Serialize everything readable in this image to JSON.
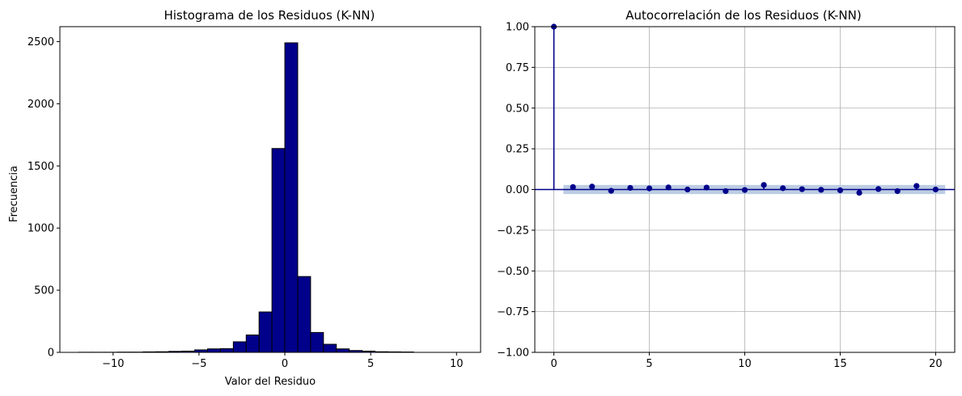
{
  "colors": {
    "bar_fill": "#00008B",
    "bar_edge": "#000000",
    "stem": "#00008B",
    "marker": "#00008B",
    "confidence_band": "#B0C4DE",
    "grid": "#b0b0b0"
  },
  "chart_data": [
    {
      "type": "bar",
      "title": "Histograma de los Residuos (K-NN)",
      "xlabel": "Valor del Residuo",
      "ylabel": "Frecuencia",
      "xlim": [
        -13.1,
        11.4
      ],
      "ylim": [
        0,
        2620
      ],
      "xticks": [
        -10,
        -5,
        0,
        5,
        10
      ],
      "xtick_labels": [
        "−10",
        "−5",
        "0",
        "5",
        "10"
      ],
      "yticks": [
        0,
        500,
        1000,
        1500,
        2000,
        2500
      ],
      "ytick_labels": [
        "0",
        "500",
        "1000",
        "1500",
        "2000",
        "2500"
      ],
      "grid": false,
      "bins": [
        {
          "x0": -12.0,
          "x1": -11.25,
          "value": 1
        },
        {
          "x0": -11.25,
          "x1": -10.5,
          "value": 1
        },
        {
          "x0": -10.5,
          "x1": -9.75,
          "value": 1
        },
        {
          "x0": -9.75,
          "x1": -9.0,
          "value": 2
        },
        {
          "x0": -9.0,
          "x1": -8.25,
          "value": 2
        },
        {
          "x0": -8.25,
          "x1": -7.5,
          "value": 4
        },
        {
          "x0": -7.5,
          "x1": -6.75,
          "value": 5
        },
        {
          "x0": -6.75,
          "x1": -6.0,
          "value": 8
        },
        {
          "x0": -6.0,
          "x1": -5.25,
          "value": 10
        },
        {
          "x0": -5.25,
          "x1": -4.5,
          "value": 20
        },
        {
          "x0": -4.5,
          "x1": -3.75,
          "value": 28
        },
        {
          "x0": -3.75,
          "x1": -3.0,
          "value": 30
        },
        {
          "x0": -3.0,
          "x1": -2.25,
          "value": 85
        },
        {
          "x0": -2.25,
          "x1": -1.5,
          "value": 140
        },
        {
          "x0": -1.5,
          "x1": -0.75,
          "value": 325
        },
        {
          "x0": -0.75,
          "x1": 0.0,
          "value": 1640
        },
        {
          "x0": 0.0,
          "x1": 0.75,
          "value": 2490
        },
        {
          "x0": 0.75,
          "x1": 1.5,
          "value": 610
        },
        {
          "x0": 1.5,
          "x1": 2.25,
          "value": 160
        },
        {
          "x0": 2.25,
          "x1": 3.0,
          "value": 65
        },
        {
          "x0": 3.0,
          "x1": 3.75,
          "value": 28
        },
        {
          "x0": 3.75,
          "x1": 4.5,
          "value": 15
        },
        {
          "x0": 4.5,
          "x1": 5.25,
          "value": 10
        },
        {
          "x0": 5.25,
          "x1": 6.0,
          "value": 5
        },
        {
          "x0": 6.0,
          "x1": 6.75,
          "value": 4
        },
        {
          "x0": 6.75,
          "x1": 7.5,
          "value": 3
        }
      ]
    },
    {
      "type": "scatter",
      "title": "Autocorrelación de los Residuos (K-NN)",
      "xlabel": "",
      "ylabel": "",
      "xlim": [
        -1.0,
        21.0
      ],
      "ylim": [
        -1.0,
        1.0
      ],
      "xticks": [
        0,
        5,
        10,
        15,
        20
      ],
      "xtick_labels": [
        "0",
        "5",
        "10",
        "15",
        "20"
      ],
      "yticks": [
        -1.0,
        -0.75,
        -0.5,
        -0.25,
        0.0,
        0.25,
        0.5,
        0.75,
        1.0
      ],
      "ytick_labels": [
        "−1.00",
        "−0.75",
        "−0.50",
        "−0.25",
        "0.00",
        "0.25",
        "0.50",
        "0.75",
        "1.00"
      ],
      "grid": true,
      "confidence_interval": [
        -0.028,
        0.028
      ],
      "confidence_x_range": [
        0.5,
        20.5
      ],
      "lags": [
        0,
        1,
        2,
        3,
        4,
        5,
        6,
        7,
        8,
        9,
        10,
        11,
        12,
        13,
        14,
        15,
        16,
        17,
        18,
        19,
        20
      ],
      "acf": [
        1.0,
        0.015,
        0.018,
        -0.008,
        0.01,
        0.007,
        0.013,
        0.0,
        0.012,
        -0.01,
        -0.003,
        0.028,
        0.008,
        0.002,
        -0.002,
        -0.005,
        -0.02,
        0.003,
        -0.01,
        0.022,
        0.0
      ]
    }
  ]
}
